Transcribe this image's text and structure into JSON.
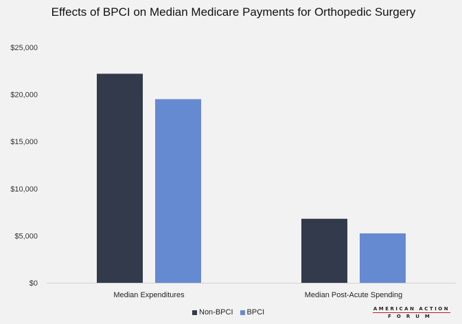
{
  "chart_data": {
    "type": "bar",
    "title": "Effects of BPCI on Median Medicare Payments for Orthopedic Surgery",
    "categories": [
      "Median Expenditures",
      "Median Post-Acute Spending"
    ],
    "series": [
      {
        "name": "Non-BPCI",
        "values": [
          22200,
          6800
        ],
        "color": "#323a4b"
      },
      {
        "name": "BPCI",
        "values": [
          19500,
          5250
        ],
        "color": "#668ad2"
      }
    ],
    "ylim": [
      0,
      25000
    ],
    "yticks": [
      0,
      5000,
      10000,
      15000,
      20000,
      25000
    ],
    "ytick_labels": [
      "$0",
      "$5,000",
      "$10,000",
      "$15,000",
      "$20,000",
      "$25,000"
    ],
    "xlabel": "",
    "ylabel": "",
    "grid": false,
    "legend_position": "bottom"
  },
  "logo": {
    "line1": "AMERICAN ACTION",
    "line2": "FORUM"
  }
}
